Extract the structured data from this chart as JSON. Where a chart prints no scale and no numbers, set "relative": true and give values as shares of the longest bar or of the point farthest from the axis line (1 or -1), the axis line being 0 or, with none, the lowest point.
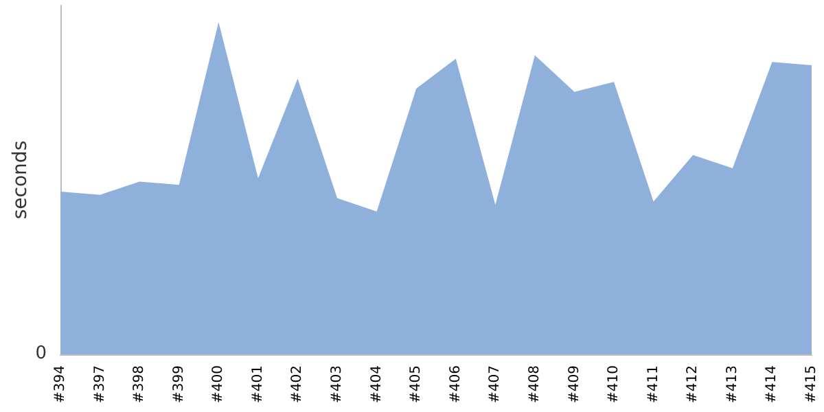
{
  "chart_data": {
    "type": "area",
    "ylabel": "seconds",
    "relative": true,
    "annotations": [
      "0"
    ],
    "categories": [
      "#394",
      "#397",
      "#398",
      "#399",
      "#400",
      "#401",
      "#402",
      "#403",
      "#404",
      "#405",
      "#406",
      "#407",
      "#408",
      "#409",
      "#410",
      "#411",
      "#412",
      "#413",
      "#414",
      "#415"
    ],
    "series": [
      {
        "color": "#8fb0da",
        "values": [
          0.49,
          0.48,
          0.52,
          0.51,
          1,
          0.53,
          0.83,
          0.47,
          0.43,
          0.8,
          0.89,
          0.45,
          0.9,
          0.79,
          0.82,
          0.46,
          0.6,
          0.56,
          0.88,
          0.87
        ]
      }
    ]
  }
}
